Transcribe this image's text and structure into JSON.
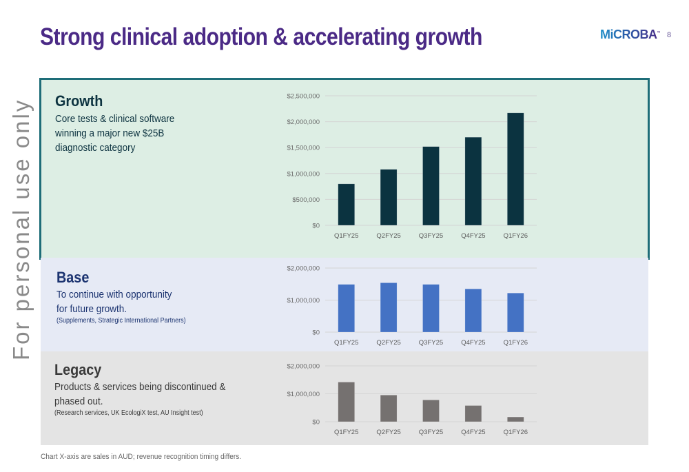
{
  "slide": {
    "title": "Strong clinical adoption & accelerating growth",
    "logo_text": "MiCROBA",
    "logo_mark": "™",
    "page_number": "8",
    "watermark": "For personal use only",
    "footnote": "Chart X-axis are sales in AUD; revenue recognition timing differs."
  },
  "panels": {
    "growth": {
      "title": "Growth",
      "desc_lines": [
        "Core tests & clinical software",
        "winning a major new $25B",
        "diagnostic category"
      ],
      "colors": {
        "background": "#ddeee4",
        "border": "#1e6d78",
        "title": "#0d3340",
        "text": "#0d3340"
      }
    },
    "base": {
      "title": "Base",
      "desc_lines": [
        "To continue with opportunity",
        "for future growth."
      ],
      "sub": "(Supplements, Strategic International Partners)",
      "colors": {
        "background": "#e6eaf5",
        "title": "#1b3370",
        "text": "#1b3370"
      }
    },
    "legacy": {
      "title": "Legacy",
      "desc_lines": [
        "Products & services being discontinued &",
        "phased out."
      ],
      "sub": "(Research services, UK EcologiX test, AU Insight test)",
      "colors": {
        "background": "#e4e4e4",
        "title": "#3a3a3a",
        "text": "#3a3a3a"
      }
    }
  },
  "chart_data": [
    {
      "id": "growth",
      "type": "bar",
      "title": "",
      "xlabel": "",
      "ylabel": "",
      "categories": [
        "Q1FY25",
        "Q2FY25",
        "Q3FY25",
        "Q4FY25",
        "Q1FY26"
      ],
      "values": [
        800000,
        1080000,
        1520000,
        1700000,
        2170000
      ],
      "ylim": [
        0,
        2500000
      ],
      "yticks": [
        0,
        500000,
        1000000,
        1500000,
        2000000,
        2500000
      ],
      "ytick_labels": [
        "$0",
        "$500,000",
        "$1,000,000",
        "$1,500,000",
        "$2,000,000",
        "$2,500,000"
      ],
      "grid": true,
      "bar_color": "#0b3340"
    },
    {
      "id": "base",
      "type": "bar",
      "title": "",
      "xlabel": "",
      "ylabel": "",
      "categories": [
        "Q1FY25",
        "Q2FY25",
        "Q3FY25",
        "Q4FY25",
        "Q1FY26"
      ],
      "values": [
        1490000,
        1540000,
        1490000,
        1350000,
        1220000
      ],
      "ylim": [
        0,
        2000000
      ],
      "yticks": [
        0,
        1000000,
        2000000
      ],
      "ytick_labels": [
        "$0",
        "$1,000,000",
        "$2,000,000"
      ],
      "grid": true,
      "bar_color": "#4472c4"
    },
    {
      "id": "legacy",
      "type": "bar",
      "title": "",
      "xlabel": "",
      "ylabel": "",
      "categories": [
        "Q1FY25",
        "Q2FY25",
        "Q3FY25",
        "Q4FY25",
        "Q1FY26"
      ],
      "values": [
        1420000,
        955000,
        780000,
        580000,
        170000
      ],
      "ylim": [
        0,
        2000000
      ],
      "yticks": [
        0,
        1000000,
        2000000
      ],
      "ytick_labels": [
        "$0",
        "$1,000,000",
        "$2,000,000"
      ],
      "grid": true,
      "bar_color": "#757170"
    }
  ]
}
